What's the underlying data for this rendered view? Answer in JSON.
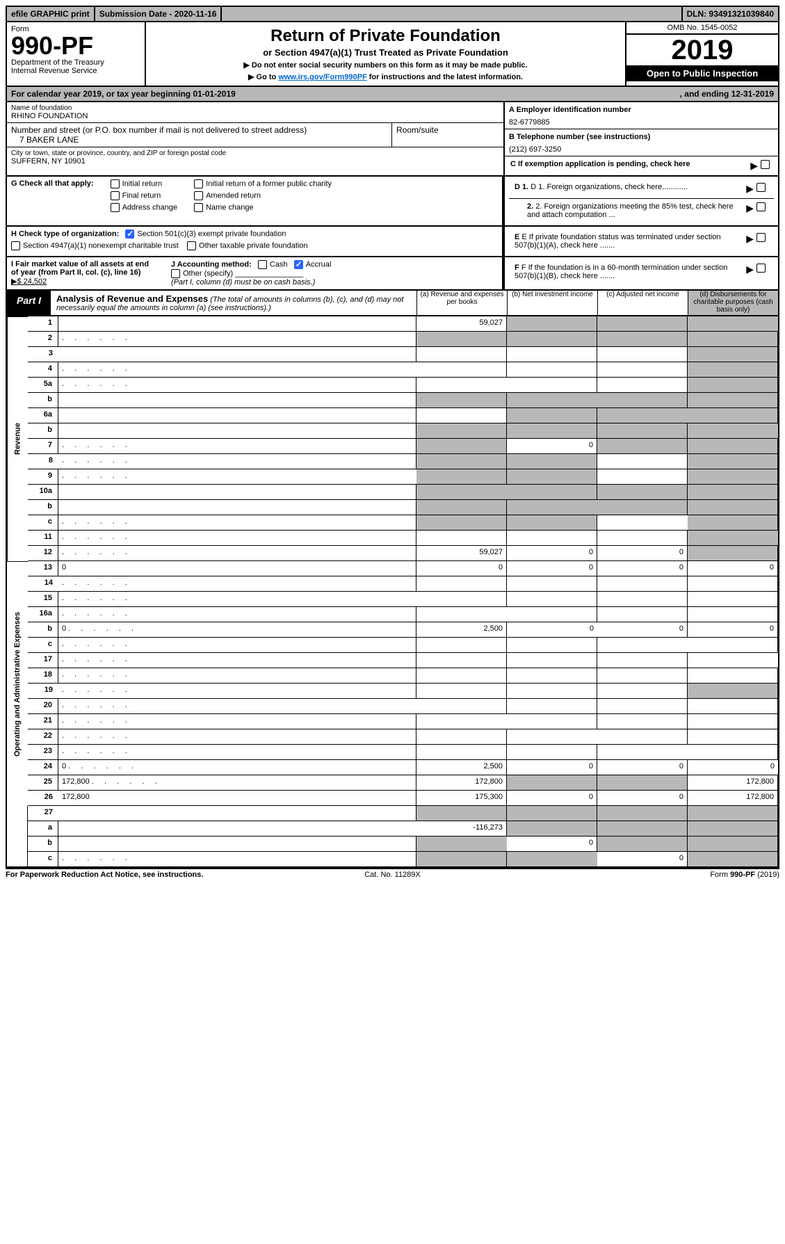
{
  "topbar": {
    "efile": "efile GRAPHIC print",
    "submission_label": "Submission Date - 2020-11-16",
    "dln": "DLN: 93491321039840"
  },
  "header": {
    "form_label": "Form",
    "form_number": "990-PF",
    "dept": "Department of the Treasury",
    "irs": "Internal Revenue Service",
    "title": "Return of Private Foundation",
    "subtitle": "or Section 4947(a)(1) Trust Treated as Private Foundation",
    "note1": "▶ Do not enter social security numbers on this form as it may be made public.",
    "note2_pre": "▶ Go to ",
    "note2_link": "www.irs.gov/Form990PF",
    "note2_post": " for instructions and the latest information.",
    "omb": "OMB No. 1545-0052",
    "year": "2019",
    "open": "Open to Public Inspection"
  },
  "calendar": {
    "text": "For calendar year 2019, or tax year beginning 01-01-2019",
    "ending": ", and ending 12-31-2019"
  },
  "foundation": {
    "name_lbl": "Name of foundation",
    "name": "RHINO FOUNDATION",
    "street_lbl": "Number and street (or P.O. box number if mail is not delivered to street address)",
    "street": "7 BAKER LANE",
    "room_lbl": "Room/suite",
    "city_lbl": "City or town, state or province, country, and ZIP or foreign postal code",
    "city": "SUFFERN, NY  10901"
  },
  "right_info": {
    "a_lbl": "A Employer identification number",
    "a_val": "82-6779885",
    "b_lbl": "B Telephone number (see instructions)",
    "b_val": "(212) 697-3250",
    "c_lbl": "C If exemption application is pending, check here",
    "d1": "D 1. Foreign organizations, check here............",
    "d2": "2. Foreign organizations meeting the 85% test, check here and attach computation ...",
    "e": "E  If private foundation status was terminated under section 507(b)(1)(A), check here .......",
    "f": "F  If the foundation is in a 60-month termination under section 507(b)(1)(B), check here ......."
  },
  "checks": {
    "g_lbl": "G Check all that apply:",
    "initial": "Initial return",
    "final": "Final return",
    "address": "Address change",
    "initial_former": "Initial return of a former public charity",
    "amended": "Amended return",
    "name_change": "Name change",
    "h_lbl": "H Check type of organization:",
    "h1": "Section 501(c)(3) exempt private foundation",
    "h2": "Section 4947(a)(1) nonexempt charitable trust",
    "h3": "Other taxable private foundation",
    "i_lbl": "I Fair market value of all assets at end of year (from Part II, col. (c), line 16)",
    "i_val": "▶$  24,502",
    "j_lbl": "J Accounting method:",
    "j_cash": "Cash",
    "j_accrual": "Accrual",
    "j_other": "Other (specify)",
    "j_note": "(Part I, column (d) must be on cash basis.)"
  },
  "part1": {
    "tab": "Part I",
    "title": "Analysis of Revenue and Expenses",
    "note": "(The total of amounts in columns (b), (c), and (d) may not necessarily equal the amounts in column (a) (see instructions).)",
    "col_a": "(a)   Revenue and expenses per books",
    "col_b": "(b)  Net investment income",
    "col_c": "(c)  Adjusted net income",
    "col_d": "(d)  Disbursements for charitable purposes (cash basis only)"
  },
  "sections": {
    "revenue": "Revenue",
    "expenses": "Operating and Administrative Expenses"
  },
  "rows": [
    {
      "n": "1",
      "d": "",
      "a": "59,027",
      "b": "",
      "c": "",
      "sb": true,
      "sc": true,
      "sd": true
    },
    {
      "n": "2",
      "d": "",
      "a": "",
      "b": "",
      "c": "",
      "sa": true,
      "sb": true,
      "sc": true,
      "sd": true,
      "dots": true
    },
    {
      "n": "3",
      "d": "",
      "a": "",
      "b": "",
      "c": "",
      "sd": true
    },
    {
      "n": "4",
      "d": "",
      "a": "",
      "b": "",
      "c": "",
      "sd": true,
      "dots": true
    },
    {
      "n": "5a",
      "d": "",
      "a": "",
      "b": "",
      "c": "",
      "sd": true,
      "dots": true
    },
    {
      "n": "b",
      "d": "",
      "a": "",
      "b": "",
      "c": "",
      "sa": true,
      "sb": true,
      "sc": true,
      "sd": true
    },
    {
      "n": "6a",
      "d": "",
      "a": "",
      "b": "",
      "c": "",
      "sb": true,
      "sc": true,
      "sd": true
    },
    {
      "n": "b",
      "d": "",
      "a": "",
      "b": "",
      "c": "",
      "sa": true,
      "sb": true,
      "sc": true,
      "sd": true
    },
    {
      "n": "7",
      "d": "",
      "a": "",
      "b": "0",
      "c": "",
      "sa": true,
      "sc": true,
      "sd": true,
      "dots": true
    },
    {
      "n": "8",
      "d": "",
      "a": "",
      "b": "",
      "c": "",
      "sa": true,
      "sb": true,
      "sd": true,
      "dots": true
    },
    {
      "n": "9",
      "d": "",
      "a": "",
      "b": "",
      "c": "",
      "sa": true,
      "sb": true,
      "sd": true,
      "dots": true
    },
    {
      "n": "10a",
      "d": "",
      "a": "",
      "b": "",
      "c": "",
      "sa": true,
      "sb": true,
      "sc": true,
      "sd": true
    },
    {
      "n": "b",
      "d": "",
      "a": "",
      "b": "",
      "c": "",
      "sa": true,
      "sb": true,
      "sc": true,
      "sd": true
    },
    {
      "n": "c",
      "d": "",
      "a": "",
      "b": "",
      "c": "",
      "sa": true,
      "sb": true,
      "sd": true,
      "dots": true
    },
    {
      "n": "11",
      "d": "",
      "a": "",
      "b": "",
      "c": "",
      "sd": true,
      "dots": true
    },
    {
      "n": "12",
      "d": "",
      "a": "59,027",
      "b": "0",
      "c": "0",
      "sd": true,
      "dots": true
    },
    {
      "n": "13",
      "d": "0",
      "a": "0",
      "b": "0",
      "c": "0"
    },
    {
      "n": "14",
      "d": "",
      "a": "",
      "b": "",
      "c": "",
      "dots": true
    },
    {
      "n": "15",
      "d": "",
      "a": "",
      "b": "",
      "c": "",
      "dots": true
    },
    {
      "n": "16a",
      "d": "",
      "a": "",
      "b": "",
      "c": "",
      "dots": true
    },
    {
      "n": "b",
      "d": "0",
      "a": "2,500",
      "b": "0",
      "c": "0",
      "dots": true
    },
    {
      "n": "c",
      "d": "",
      "a": "",
      "b": "",
      "c": "",
      "dots": true
    },
    {
      "n": "17",
      "d": "",
      "a": "",
      "b": "",
      "c": "",
      "dots": true
    },
    {
      "n": "18",
      "d": "",
      "a": "",
      "b": "",
      "c": "",
      "dots": true
    },
    {
      "n": "19",
      "d": "",
      "a": "",
      "b": "",
      "c": "",
      "sd": true,
      "dots": true
    },
    {
      "n": "20",
      "d": "",
      "a": "",
      "b": "",
      "c": "",
      "dots": true
    },
    {
      "n": "21",
      "d": "",
      "a": "",
      "b": "",
      "c": "",
      "dots": true
    },
    {
      "n": "22",
      "d": "",
      "a": "",
      "b": "",
      "c": "",
      "dots": true
    },
    {
      "n": "23",
      "d": "",
      "a": "",
      "b": "",
      "c": "",
      "dots": true
    },
    {
      "n": "24",
      "d": "0",
      "a": "2,500",
      "b": "0",
      "c": "0",
      "dots": true
    },
    {
      "n": "25",
      "d": "172,800",
      "a": "172,800",
      "b": "",
      "c": "",
      "sb": true,
      "sc": true,
      "dots": true
    },
    {
      "n": "26",
      "d": "172,800",
      "a": "175,300",
      "b": "0",
      "c": "0"
    },
    {
      "n": "27",
      "d": "",
      "a": "",
      "b": "",
      "c": "",
      "sa": true,
      "sb": true,
      "sc": true,
      "sd": true
    },
    {
      "n": "a",
      "d": "",
      "a": "-116,273",
      "b": "",
      "c": "",
      "sb": true,
      "sc": true,
      "sd": true
    },
    {
      "n": "b",
      "d": "",
      "a": "",
      "b": "0",
      "c": "",
      "sa": true,
      "sc": true,
      "sd": true
    },
    {
      "n": "c",
      "d": "",
      "a": "",
      "b": "",
      "c": "0",
      "sa": true,
      "sb": true,
      "sd": true,
      "dots": true
    }
  ],
  "footer": {
    "left": "For Paperwork Reduction Act Notice, see instructions.",
    "mid": "Cat. No. 11289X",
    "right": "Form 990-PF (2019)"
  },
  "colors": {
    "shade": "#b8b8b8",
    "link": "#0066cc",
    "check": "#2962ff"
  }
}
